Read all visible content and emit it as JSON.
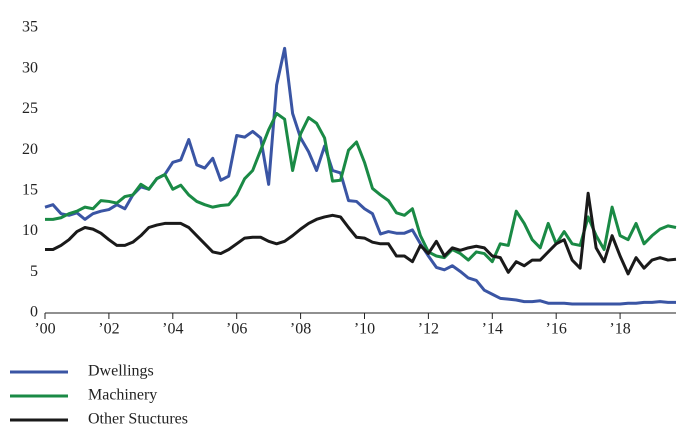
{
  "chart_data": {
    "type": "line",
    "x": [
      2000,
      2000.25,
      2000.5,
      2000.75,
      2001,
      2001.25,
      2001.5,
      2001.75,
      2002,
      2002.25,
      2002.5,
      2002.75,
      2003,
      2003.25,
      2003.5,
      2003.75,
      2004,
      2004.25,
      2004.5,
      2004.75,
      2005,
      2005.25,
      2005.5,
      2005.75,
      2006,
      2006.25,
      2006.5,
      2006.75,
      2007,
      2007.25,
      2007.5,
      2007.75,
      2008,
      2008.25,
      2008.5,
      2008.75,
      2009,
      2009.25,
      2009.5,
      2009.75,
      2010,
      2010.25,
      2010.5,
      2010.75,
      2011,
      2011.25,
      2011.5,
      2011.75,
      2012,
      2012.25,
      2012.5,
      2012.75,
      2013,
      2013.25,
      2013.5,
      2013.75,
      2014,
      2014.25,
      2014.5,
      2014.75,
      2015,
      2015.25,
      2015.5,
      2015.75,
      2016,
      2016.25,
      2016.5,
      2016.75,
      2017,
      2017.25,
      2017.5,
      2017.75,
      2018,
      2018.25,
      2018.5,
      2018.75,
      2019,
      2019.25,
      2019.5,
      2019.75
    ],
    "series": [
      {
        "name": "Dwellings",
        "color": "#3a55a4",
        "values": [
          13,
          13.3,
          12.2,
          12,
          12.3,
          11.5,
          12.2,
          12.5,
          12.7,
          13.3,
          12.8,
          14.5,
          15.5,
          15.2,
          16.5,
          17,
          18.5,
          18.8,
          21.3,
          18.2,
          17.8,
          19,
          16.3,
          16.8,
          21.8,
          21.6,
          22.3,
          21.5,
          15.8,
          28,
          32.5,
          24.5,
          21.5,
          19.8,
          17.5,
          20.5,
          17.5,
          17.2,
          13.8,
          13.7,
          12.8,
          12.2,
          9.7,
          10,
          9.8,
          9.8,
          10.2,
          8.5,
          7,
          5.6,
          5.3,
          5.8,
          5.1,
          4.3,
          4,
          2.8,
          2.3,
          1.8,
          1.7,
          1.6,
          1.4,
          1.4,
          1.5,
          1.2,
          1.2,
          1.2,
          1.1,
          1.1,
          1.1,
          1.1,
          1.1,
          1.1,
          1.1,
          1.2,
          1.2,
          1.3,
          1.3,
          1.4,
          1.3,
          1.3
        ]
      },
      {
        "name": "Machinery",
        "color": "#1a8a45",
        "values": [
          11.5,
          11.5,
          11.7,
          12.2,
          12.5,
          13,
          12.8,
          13.8,
          13.7,
          13.5,
          14.3,
          14.5,
          15.8,
          15.2,
          16.5,
          17,
          15.2,
          15.7,
          14.5,
          13.7,
          13.3,
          13,
          13.2,
          13.3,
          14.5,
          16.5,
          17.5,
          20,
          22.5,
          24.5,
          23.8,
          17.5,
          22,
          24,
          23.3,
          21.5,
          16.2,
          16.3,
          20,
          21,
          18.5,
          15.3,
          14.5,
          13.8,
          12.3,
          12,
          12.8,
          9.5,
          7.5,
          7,
          6.8,
          7.8,
          7.3,
          6.5,
          7.5,
          7.3,
          6.3,
          8.5,
          8.3,
          12.5,
          11,
          9,
          8,
          11,
          8.5,
          10,
          8.5,
          8.3,
          11.8,
          9.5,
          7.8,
          13,
          9.5,
          9,
          11,
          8.5,
          9.5,
          10.3,
          10.7,
          10.5
        ]
      },
      {
        "name": "Other Stuctures",
        "color": "#1a1a1a",
        "values": [
          7.8,
          7.8,
          8.3,
          9,
          10,
          10.5,
          10.3,
          9.8,
          9,
          8.3,
          8.3,
          8.7,
          9.5,
          10.5,
          10.8,
          11,
          11,
          11,
          10.5,
          9.5,
          8.5,
          7.5,
          7.3,
          7.8,
          8.5,
          9.2,
          9.3,
          9.3,
          8.8,
          8.5,
          8.8,
          9.5,
          10.3,
          11,
          11.5,
          11.8,
          12,
          11.8,
          10.5,
          9.3,
          9.2,
          8.7,
          8.5,
          8.5,
          7,
          7,
          6.3,
          8.3,
          7.3,
          8.8,
          7,
          8,
          7.7,
          8,
          8.2,
          8,
          7,
          6.8,
          5,
          6.3,
          5.8,
          6.5,
          6.5,
          7.5,
          8.5,
          9,
          6.5,
          5.5,
          14.7,
          8,
          6.3,
          9.5,
          7,
          4.8,
          6.8,
          5.5,
          6.5,
          6.8,
          6.5,
          6.6
        ]
      }
    ],
    "xlim": [
      2000,
      2019.75
    ],
    "xticks": [
      {
        "value": 2000,
        "label": "’00"
      },
      {
        "value": 2002,
        "label": "’02"
      },
      {
        "value": 2004,
        "label": "’04"
      },
      {
        "value": 2006,
        "label": "’06"
      },
      {
        "value": 2008,
        "label": "’08"
      },
      {
        "value": 2010,
        "label": "’10"
      },
      {
        "value": 2012,
        "label": "’12"
      },
      {
        "value": 2014,
        "label": "’14"
      },
      {
        "value": 2016,
        "label": "’16"
      },
      {
        "value": 2018,
        "label": "’18"
      }
    ],
    "ylim": [
      0,
      35
    ],
    "yticks": [
      0,
      5,
      10,
      15,
      20,
      25,
      30,
      35
    ],
    "grid": false
  }
}
